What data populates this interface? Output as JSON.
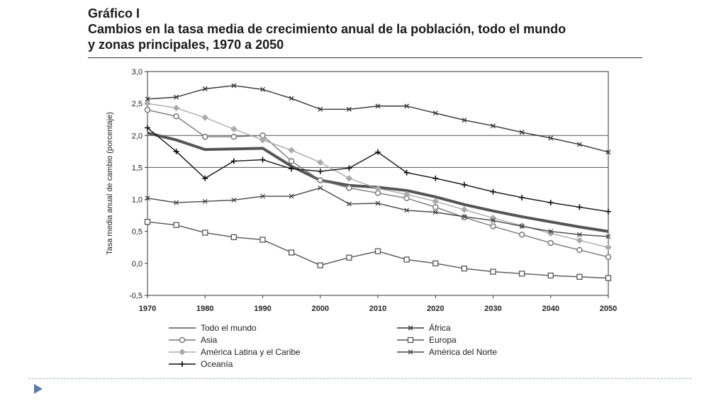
{
  "header": {
    "label": "Gráfico I",
    "title_line1": "Cambios en la tasa media de crecimiento anual de la población, todo el mundo",
    "title_line2": "y zonas principales, 1970 a 2050"
  },
  "chart_data": {
    "type": "line",
    "ylabel": "Tasa media anual de cambio (porcentaje)",
    "xlim": [
      1970,
      2050
    ],
    "ylim": [
      -0.5,
      3.0
    ],
    "x_ticks": [
      "1970",
      "1980",
      "1990",
      "2000",
      "2010",
      "2020",
      "2030",
      "2040",
      "2050"
    ],
    "y_ticks": [
      "3,0",
      "2,5",
      "2,0",
      "1,5",
      "1,0",
      "0,5",
      "0,0",
      "-0,5"
    ],
    "gridlines_y": [
      2.0,
      1.5
    ],
    "legend_position": "bottom",
    "series": [
      {
        "name": "Todo el mundo",
        "style": "thick",
        "color": "#555555",
        "x": [
          1970,
          1975,
          1980,
          1985,
          1990,
          1995,
          2000,
          2005,
          2010,
          2015,
          2020,
          2025,
          2030,
          2035,
          2040,
          2045,
          2050
        ],
        "y": [
          2.04,
          1.93,
          1.78,
          1.79,
          1.8,
          1.52,
          1.3,
          1.22,
          1.19,
          1.14,
          1.04,
          0.92,
          0.82,
          0.73,
          0.65,
          0.57,
          0.5
        ]
      },
      {
        "name": "África",
        "marker": "x",
        "color": "#333333",
        "x": [
          1970,
          1975,
          1980,
          1985,
          1990,
          1995,
          2000,
          2005,
          2010,
          2015,
          2020,
          2025,
          2030,
          2035,
          2040,
          2045,
          2050
        ],
        "y": [
          2.57,
          2.6,
          2.73,
          2.78,
          2.72,
          2.58,
          2.41,
          2.41,
          2.46,
          2.46,
          2.35,
          2.24,
          2.15,
          2.05,
          1.96,
          1.86,
          1.74
        ]
      },
      {
        "name": "Asia",
        "marker": "circle",
        "color": "#777777",
        "x": [
          1970,
          1975,
          1980,
          1985,
          1990,
          1995,
          2000,
          2005,
          2010,
          2015,
          2020,
          2025,
          2030,
          2035,
          2040,
          2045,
          2050
        ],
        "y": [
          2.4,
          2.3,
          1.98,
          1.98,
          2.0,
          1.6,
          1.3,
          1.18,
          1.1,
          1.02,
          0.88,
          0.72,
          0.58,
          0.45,
          0.32,
          0.21,
          0.1
        ]
      },
      {
        "name": "Europa",
        "marker": "square",
        "color": "#555555",
        "x": [
          1970,
          1975,
          1980,
          1985,
          1990,
          1995,
          2000,
          2005,
          2010,
          2015,
          2020,
          2025,
          2030,
          2035,
          2040,
          2045,
          2050
        ],
        "y": [
          0.65,
          0.6,
          0.48,
          0.41,
          0.37,
          0.17,
          -0.03,
          0.09,
          0.19,
          0.06,
          0.0,
          -0.08,
          -0.13,
          -0.16,
          -0.19,
          -0.21,
          -0.23
        ]
      },
      {
        "name": "América Latina y el Caribe",
        "marker": "diamond",
        "color": "#aaaaaa",
        "x": [
          1970,
          1975,
          1980,
          1985,
          1990,
          1995,
          2000,
          2005,
          2010,
          2015,
          2020,
          2025,
          2030,
          2035,
          2040,
          2045,
          2050
        ],
        "y": [
          2.5,
          2.43,
          2.28,
          2.1,
          1.93,
          1.77,
          1.58,
          1.33,
          1.17,
          1.08,
          0.97,
          0.84,
          0.71,
          0.59,
          0.47,
          0.36,
          0.25
        ]
      },
      {
        "name": "América del Norte",
        "marker": "x",
        "color": "#444444",
        "x": [
          1970,
          1975,
          1980,
          1985,
          1990,
          1995,
          2000,
          2005,
          2010,
          2015,
          2020,
          2025,
          2030,
          2035,
          2040,
          2045,
          2050
        ],
        "y": [
          1.02,
          0.95,
          0.97,
          0.99,
          1.05,
          1.05,
          1.18,
          0.93,
          0.94,
          0.83,
          0.8,
          0.73,
          0.67,
          0.58,
          0.5,
          0.45,
          0.42
        ]
      },
      {
        "name": "Oceanía",
        "marker": "plus",
        "color": "#111111",
        "x": [
          1970,
          1975,
          1980,
          1985,
          1990,
          1995,
          2000,
          2005,
          2010,
          2015,
          2020,
          2025,
          2030,
          2035,
          2040,
          2045,
          2050
        ],
        "y": [
          2.12,
          1.75,
          1.33,
          1.6,
          1.62,
          1.48,
          1.44,
          1.49,
          1.74,
          1.42,
          1.33,
          1.23,
          1.12,
          1.03,
          0.95,
          0.88,
          0.81
        ]
      }
    ]
  }
}
